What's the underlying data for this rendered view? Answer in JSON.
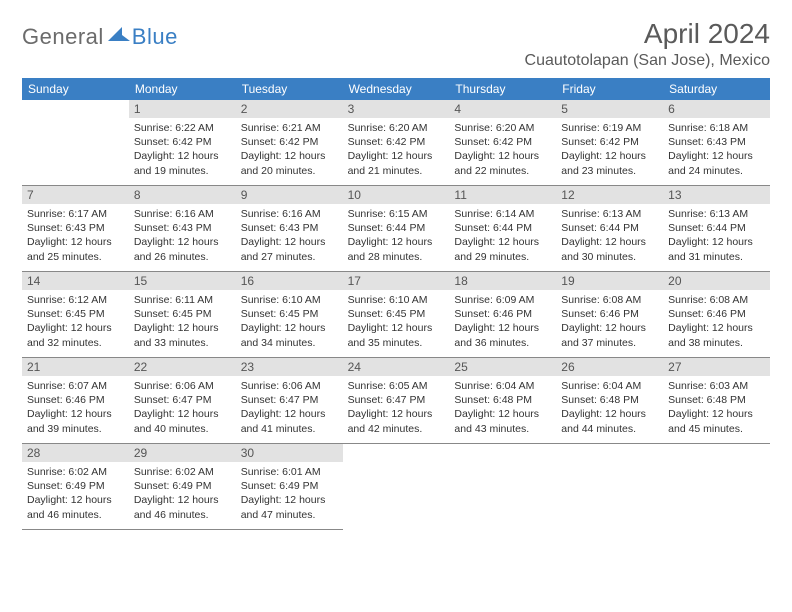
{
  "logo": {
    "general": "General",
    "blue": "Blue"
  },
  "title": "April 2024",
  "location": "Cuautotolapan (San Jose), Mexico",
  "colors": {
    "header_bg": "#3a7fc4",
    "header_text": "#ffffff",
    "daynum_bg": "#e2e2e2",
    "daynum_text": "#555555",
    "body_text": "#333333",
    "border": "#888888",
    "logo_gray": "#6b6b6b",
    "logo_blue": "#3a7fc4",
    "title_color": "#5a5a5a",
    "page_bg": "#ffffff"
  },
  "weekdays": [
    "Sunday",
    "Monday",
    "Tuesday",
    "Wednesday",
    "Thursday",
    "Friday",
    "Saturday"
  ],
  "leading_blanks": 1,
  "days": [
    {
      "n": "1",
      "sunrise": "Sunrise: 6:22 AM",
      "sunset": "Sunset: 6:42 PM",
      "day1": "Daylight: 12 hours",
      "day2": "and 19 minutes."
    },
    {
      "n": "2",
      "sunrise": "Sunrise: 6:21 AM",
      "sunset": "Sunset: 6:42 PM",
      "day1": "Daylight: 12 hours",
      "day2": "and 20 minutes."
    },
    {
      "n": "3",
      "sunrise": "Sunrise: 6:20 AM",
      "sunset": "Sunset: 6:42 PM",
      "day1": "Daylight: 12 hours",
      "day2": "and 21 minutes."
    },
    {
      "n": "4",
      "sunrise": "Sunrise: 6:20 AM",
      "sunset": "Sunset: 6:42 PM",
      "day1": "Daylight: 12 hours",
      "day2": "and 22 minutes."
    },
    {
      "n": "5",
      "sunrise": "Sunrise: 6:19 AM",
      "sunset": "Sunset: 6:42 PM",
      "day1": "Daylight: 12 hours",
      "day2": "and 23 minutes."
    },
    {
      "n": "6",
      "sunrise": "Sunrise: 6:18 AM",
      "sunset": "Sunset: 6:43 PM",
      "day1": "Daylight: 12 hours",
      "day2": "and 24 minutes."
    },
    {
      "n": "7",
      "sunrise": "Sunrise: 6:17 AM",
      "sunset": "Sunset: 6:43 PM",
      "day1": "Daylight: 12 hours",
      "day2": "and 25 minutes."
    },
    {
      "n": "8",
      "sunrise": "Sunrise: 6:16 AM",
      "sunset": "Sunset: 6:43 PM",
      "day1": "Daylight: 12 hours",
      "day2": "and 26 minutes."
    },
    {
      "n": "9",
      "sunrise": "Sunrise: 6:16 AM",
      "sunset": "Sunset: 6:43 PM",
      "day1": "Daylight: 12 hours",
      "day2": "and 27 minutes."
    },
    {
      "n": "10",
      "sunrise": "Sunrise: 6:15 AM",
      "sunset": "Sunset: 6:44 PM",
      "day1": "Daylight: 12 hours",
      "day2": "and 28 minutes."
    },
    {
      "n": "11",
      "sunrise": "Sunrise: 6:14 AM",
      "sunset": "Sunset: 6:44 PM",
      "day1": "Daylight: 12 hours",
      "day2": "and 29 minutes."
    },
    {
      "n": "12",
      "sunrise": "Sunrise: 6:13 AM",
      "sunset": "Sunset: 6:44 PM",
      "day1": "Daylight: 12 hours",
      "day2": "and 30 minutes."
    },
    {
      "n": "13",
      "sunrise": "Sunrise: 6:13 AM",
      "sunset": "Sunset: 6:44 PM",
      "day1": "Daylight: 12 hours",
      "day2": "and 31 minutes."
    },
    {
      "n": "14",
      "sunrise": "Sunrise: 6:12 AM",
      "sunset": "Sunset: 6:45 PM",
      "day1": "Daylight: 12 hours",
      "day2": "and 32 minutes."
    },
    {
      "n": "15",
      "sunrise": "Sunrise: 6:11 AM",
      "sunset": "Sunset: 6:45 PM",
      "day1": "Daylight: 12 hours",
      "day2": "and 33 minutes."
    },
    {
      "n": "16",
      "sunrise": "Sunrise: 6:10 AM",
      "sunset": "Sunset: 6:45 PM",
      "day1": "Daylight: 12 hours",
      "day2": "and 34 minutes."
    },
    {
      "n": "17",
      "sunrise": "Sunrise: 6:10 AM",
      "sunset": "Sunset: 6:45 PM",
      "day1": "Daylight: 12 hours",
      "day2": "and 35 minutes."
    },
    {
      "n": "18",
      "sunrise": "Sunrise: 6:09 AM",
      "sunset": "Sunset: 6:46 PM",
      "day1": "Daylight: 12 hours",
      "day2": "and 36 minutes."
    },
    {
      "n": "19",
      "sunrise": "Sunrise: 6:08 AM",
      "sunset": "Sunset: 6:46 PM",
      "day1": "Daylight: 12 hours",
      "day2": "and 37 minutes."
    },
    {
      "n": "20",
      "sunrise": "Sunrise: 6:08 AM",
      "sunset": "Sunset: 6:46 PM",
      "day1": "Daylight: 12 hours",
      "day2": "and 38 minutes."
    },
    {
      "n": "21",
      "sunrise": "Sunrise: 6:07 AM",
      "sunset": "Sunset: 6:46 PM",
      "day1": "Daylight: 12 hours",
      "day2": "and 39 minutes."
    },
    {
      "n": "22",
      "sunrise": "Sunrise: 6:06 AM",
      "sunset": "Sunset: 6:47 PM",
      "day1": "Daylight: 12 hours",
      "day2": "and 40 minutes."
    },
    {
      "n": "23",
      "sunrise": "Sunrise: 6:06 AM",
      "sunset": "Sunset: 6:47 PM",
      "day1": "Daylight: 12 hours",
      "day2": "and 41 minutes."
    },
    {
      "n": "24",
      "sunrise": "Sunrise: 6:05 AM",
      "sunset": "Sunset: 6:47 PM",
      "day1": "Daylight: 12 hours",
      "day2": "and 42 minutes."
    },
    {
      "n": "25",
      "sunrise": "Sunrise: 6:04 AM",
      "sunset": "Sunset: 6:48 PM",
      "day1": "Daylight: 12 hours",
      "day2": "and 43 minutes."
    },
    {
      "n": "26",
      "sunrise": "Sunrise: 6:04 AM",
      "sunset": "Sunset: 6:48 PM",
      "day1": "Daylight: 12 hours",
      "day2": "and 44 minutes."
    },
    {
      "n": "27",
      "sunrise": "Sunrise: 6:03 AM",
      "sunset": "Sunset: 6:48 PM",
      "day1": "Daylight: 12 hours",
      "day2": "and 45 minutes."
    },
    {
      "n": "28",
      "sunrise": "Sunrise: 6:02 AM",
      "sunset": "Sunset: 6:49 PM",
      "day1": "Daylight: 12 hours",
      "day2": "and 46 minutes."
    },
    {
      "n": "29",
      "sunrise": "Sunrise: 6:02 AM",
      "sunset": "Sunset: 6:49 PM",
      "day1": "Daylight: 12 hours",
      "day2": "and 46 minutes."
    },
    {
      "n": "30",
      "sunrise": "Sunrise: 6:01 AM",
      "sunset": "Sunset: 6:49 PM",
      "day1": "Daylight: 12 hours",
      "day2": "and 47 minutes."
    }
  ]
}
